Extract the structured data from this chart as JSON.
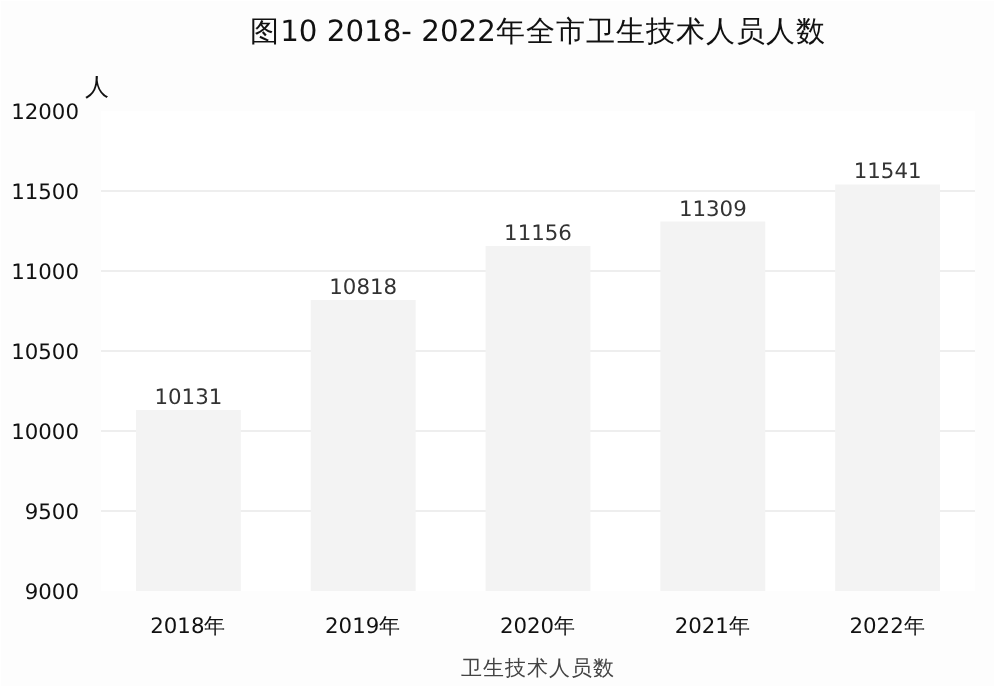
{
  "chart_data": {
    "type": "bar",
    "title": "图10 2018- 2022年全市卫生技术人员人数",
    "ylabel": "人",
    "xlabel": "卫生技术人员数",
    "categories": [
      "2018年",
      "2019年",
      "2020年",
      "2021年",
      "2022年"
    ],
    "series": [
      {
        "color": "#f3f3f3",
        "values": [
          10131,
          10818,
          11156,
          11309,
          11541
        ]
      }
    ],
    "ylim": [
      9000,
      12000
    ],
    "yticks": [
      9000,
      9500,
      10000,
      10500,
      11000,
      11500,
      12000
    ],
    "grid": "y",
    "data_labels": true
  }
}
